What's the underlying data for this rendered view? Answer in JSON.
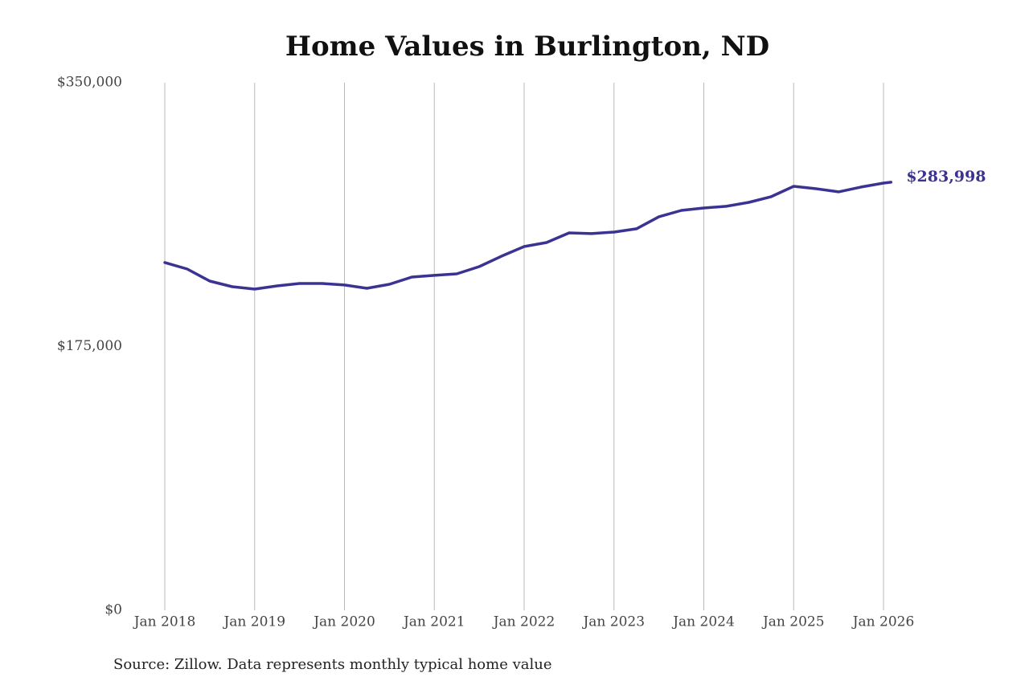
{
  "chart_data": {
    "type": "line",
    "title": "Home Values in Burlington, ND",
    "source": "Source: Zillow. Data represents monthly typical home value",
    "color": "#3b3393",
    "x": [
      "2018-01",
      "2018-04",
      "2018-07",
      "2018-10",
      "2019-01",
      "2019-04",
      "2019-07",
      "2019-10",
      "2020-01",
      "2020-04",
      "2020-07",
      "2020-10",
      "2021-01",
      "2021-04",
      "2021-07",
      "2021-10",
      "2022-01",
      "2022-04",
      "2022-07",
      "2022-10",
      "2023-01",
      "2023-04",
      "2023-07",
      "2023-10",
      "2024-01",
      "2024-04",
      "2024-07",
      "2024-10",
      "2025-01",
      "2025-04",
      "2025-07",
      "2025-10",
      "2026-01",
      "2026-02"
    ],
    "values": [
      230700,
      226400,
      218400,
      214700,
      213100,
      215200,
      216800,
      216800,
      215800,
      213600,
      216300,
      221100,
      222200,
      223200,
      228000,
      235000,
      241300,
      244000,
      250400,
      249900,
      250900,
      253100,
      261100,
      265300,
      266900,
      268000,
      270600,
      274400,
      281300,
      279700,
      277600,
      280800,
      283400,
      283998
    ],
    "value_labels": [
      null,
      null,
      null,
      null,
      null,
      null,
      null,
      null,
      null,
      null,
      null,
      null,
      null,
      null,
      null,
      null,
      null,
      null,
      null,
      null,
      null,
      null,
      null,
      null,
      null,
      null,
      null,
      null,
      null,
      null,
      null,
      null,
      null,
      "$283,998"
    ],
    "ylim": [
      0,
      350000
    ],
    "yticks": [
      {
        "value": 0,
        "label": "$0"
      },
      {
        "value": 175000,
        "label": "$175,000"
      },
      {
        "value": 350000,
        "label": "$350,000"
      }
    ],
    "xticks": [
      {
        "value": "2018-01",
        "label": "Jan 2018"
      },
      {
        "value": "2019-01",
        "label": "Jan 2019"
      },
      {
        "value": "2020-01",
        "label": "Jan 2020"
      },
      {
        "value": "2021-01",
        "label": "Jan 2021"
      },
      {
        "value": "2022-01",
        "label": "Jan 2022"
      },
      {
        "value": "2023-01",
        "label": "Jan 2023"
      },
      {
        "value": "2024-01",
        "label": "Jan 2024"
      },
      {
        "value": "2025-01",
        "label": "Jan 2025"
      },
      {
        "value": "2026-01",
        "label": "Jan 2026"
      }
    ],
    "grid": "x"
  }
}
